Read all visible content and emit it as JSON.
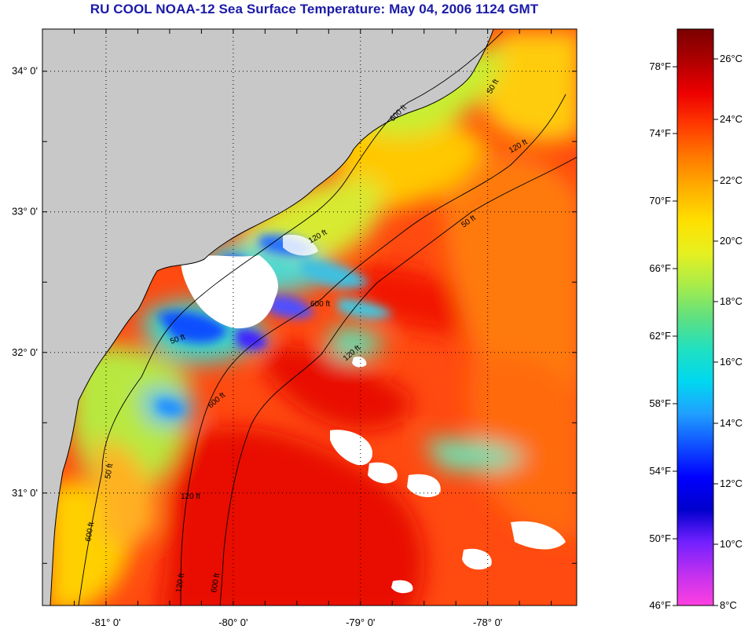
{
  "title": "RU COOL  NOAA-12  Sea Surface Temperature:  May 04, 2006 1124 GMT",
  "map": {
    "lat_labels": [
      {
        "label": "34° 0'",
        "lat": 34.0
      },
      {
        "label": "33° 0'",
        "lat": 33.0
      },
      {
        "label": "32° 0'",
        "lat": 32.0
      },
      {
        "label": "31° 0'",
        "lat": 31.0
      }
    ],
    "lon_labels": [
      {
        "label": "-81° 0'",
        "lon": -81.0
      },
      {
        "label": "-80° 0'",
        "lon": -80.0
      },
      {
        "label": "-79° 0'",
        "lon": -79.0
      },
      {
        "label": "-78° 0'",
        "lon": -78.0
      }
    ],
    "lat_range": [
      30.2,
      34.3
    ],
    "lon_range": [
      -81.5,
      -77.3
    ],
    "land_color": "#c8c8c8",
    "cloud_color": "#ffffff",
    "contour_labels": [
      "50 ft",
      "120 ft",
      "600 ft",
      "50 ft",
      "120 ft",
      "600 ft",
      "50 ft",
      "120 ft",
      "600 ft",
      "50 ft",
      "120 ft",
      "600 ft",
      "120 ft",
      "600 ft"
    ]
  },
  "colorbar": {
    "fahrenheit": [
      "78°F",
      "74°F",
      "70°F",
      "66°F",
      "62°F",
      "58°F",
      "54°F",
      "50°F",
      "46°F"
    ],
    "celsius": [
      "26°C",
      "24°C",
      "22°C",
      "20°C",
      "18°C",
      "16°C",
      "14°C",
      "12°C",
      "10°C",
      "8°C"
    ],
    "colors": [
      "#7a0000",
      "#b00000",
      "#ee0000",
      "#ff3a00",
      "#ff7a00",
      "#ffb000",
      "#ffe000",
      "#e6f020",
      "#a8ec4a",
      "#60e080",
      "#20e0c0",
      "#00d8f0",
      "#20a0ff",
      "#1050ff",
      "#0000ff",
      "#0000cc",
      "#7020ff",
      "#c030f0",
      "#ff40e0"
    ]
  }
}
